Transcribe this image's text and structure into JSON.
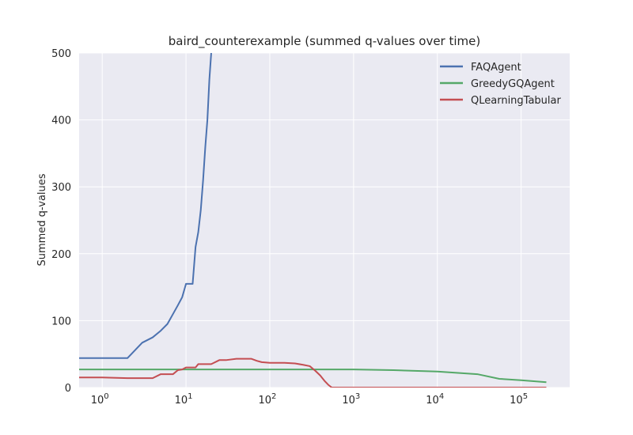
{
  "chart_data": {
    "type": "line",
    "title": "baird_counterexample (summed q-values over time)",
    "xlabel": "",
    "ylabel": "Summed q-values",
    "xscale": "log",
    "xlim": [
      0.53,
      380000
    ],
    "ylim": [
      0,
      500
    ],
    "grid": true,
    "legend_position": "top-right",
    "background_color": "#eaeaf2",
    "grid_color": "#ffffff",
    "yticks": [
      0,
      100,
      200,
      300,
      400,
      500
    ],
    "xticks": [
      {
        "base": "10",
        "exp": "0",
        "value": 1
      },
      {
        "base": "10",
        "exp": "1",
        "value": 10
      },
      {
        "base": "10",
        "exp": "2",
        "value": 100
      },
      {
        "base": "10",
        "exp": "3",
        "value": 1000
      },
      {
        "base": "10",
        "exp": "4",
        "value": 10000
      },
      {
        "base": "10",
        "exp": "5",
        "value": 100000
      }
    ],
    "series": [
      {
        "name": "FAQAgent",
        "color": "#4c72b0",
        "x": [
          0.53,
          1,
          2,
          3,
          4,
          5,
          6,
          7,
          8,
          9,
          10,
          12,
          13,
          14,
          15,
          16,
          17,
          18,
          19,
          20
        ],
        "y": [
          44,
          44,
          44,
          67,
          75,
          85,
          95,
          110,
          123,
          135,
          155,
          155,
          210,
          232,
          265,
          310,
          360,
          400,
          460,
          500
        ]
      },
      {
        "name": "GreedyGQAgent",
        "color": "#55a868",
        "x": [
          0.53,
          10,
          100,
          1000,
          3000,
          10000,
          30000,
          55000,
          100000,
          200000
        ],
        "y": [
          27,
          27,
          27,
          27,
          26,
          24,
          20,
          13,
          11,
          8
        ]
      },
      {
        "name": "QLearningTabular",
        "color": "#c44e52",
        "x": [
          0.53,
          1,
          2,
          4,
          5,
          7,
          8,
          9,
          10,
          13,
          14,
          20,
          25,
          30,
          40,
          60,
          70,
          80,
          100,
          150,
          200,
          250,
          300,
          350,
          400,
          450,
          500,
          550,
          1000,
          10000,
          100000,
          200000
        ],
        "y": [
          15,
          15,
          14,
          14,
          20,
          20,
          26,
          27,
          30,
          30,
          35,
          35,
          41,
          41,
          43,
          43,
          40,
          38,
          37,
          37,
          36,
          34,
          32,
          25,
          18,
          10,
          4,
          0,
          0,
          0,
          0,
          0
        ]
      }
    ]
  }
}
